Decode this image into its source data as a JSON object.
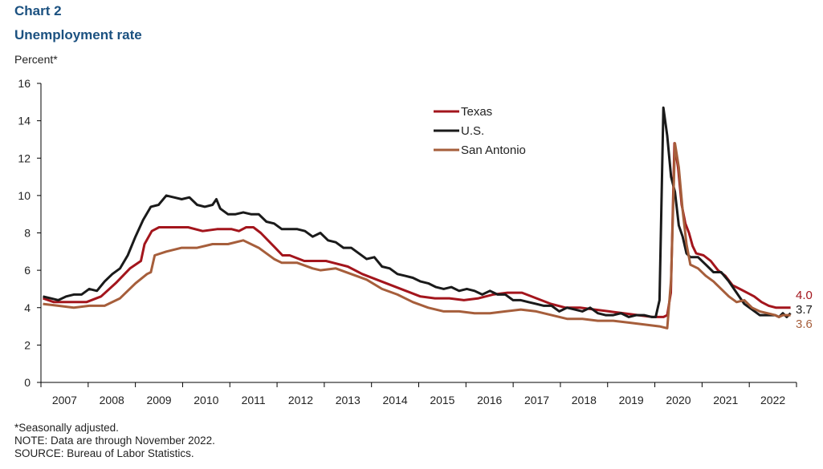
{
  "header": {
    "chart_number": "Chart 2",
    "title": "Unemployment  rate",
    "unit_label": "Percent*"
  },
  "footnotes": [
    "*Seasonally adjusted.",
    "NOTE: Data are through  November 2022.",
    "SOURCE: Bureau of Labor Statistics."
  ],
  "chart_data": {
    "type": "line",
    "title": "Unemployment  rate",
    "ylabel": "Percent*",
    "xlabel": "",
    "ylim": [
      0,
      16
    ],
    "yticks": [
      0,
      2,
      4,
      6,
      8,
      10,
      12,
      14,
      16
    ],
    "xtick_labels": [
      "2007",
      "2008",
      "2009",
      "2010",
      "2011",
      "2012",
      "2013",
      "2014",
      "2015",
      "2016",
      "2017",
      "2018",
      "2019",
      "2020",
      "2021",
      "2022"
    ],
    "x_start": "2007-01",
    "x_end": "2022-11",
    "frequency": "monthly",
    "legend_position": "top-center",
    "grid": false,
    "series": [
      {
        "name": "Texas",
        "color": "#a3151c",
        "end_label": "4.0",
        "keypoints": [
          [
            0,
            4.5
          ],
          [
            3,
            4.3
          ],
          [
            8,
            4.3
          ],
          [
            12,
            4.3
          ],
          [
            16,
            4.6
          ],
          [
            20,
            5.3
          ],
          [
            24,
            6.1
          ],
          [
            27,
            6.5
          ],
          [
            28,
            7.4
          ],
          [
            30,
            8.1
          ],
          [
            32,
            8.3
          ],
          [
            40,
            8.3
          ],
          [
            44,
            8.1
          ],
          [
            48,
            8.2
          ],
          [
            52,
            8.2
          ],
          [
            54,
            8.1
          ],
          [
            56,
            8.3
          ],
          [
            58,
            8.3
          ],
          [
            60,
            8.0
          ],
          [
            64,
            7.2
          ],
          [
            66,
            6.8
          ],
          [
            68,
            6.8
          ],
          [
            72,
            6.5
          ],
          [
            76,
            6.5
          ],
          [
            78,
            6.5
          ],
          [
            80,
            6.4
          ],
          [
            84,
            6.2
          ],
          [
            88,
            5.8
          ],
          [
            92,
            5.5
          ],
          [
            96,
            5.2
          ],
          [
            100,
            4.9
          ],
          [
            104,
            4.6
          ],
          [
            108,
            4.5
          ],
          [
            112,
            4.5
          ],
          [
            116,
            4.4
          ],
          [
            120,
            4.5
          ],
          [
            124,
            4.7
          ],
          [
            128,
            4.8
          ],
          [
            132,
            4.8
          ],
          [
            136,
            4.5
          ],
          [
            140,
            4.2
          ],
          [
            144,
            4.0
          ],
          [
            148,
            4.0
          ],
          [
            152,
            3.9
          ],
          [
            156,
            3.8
          ],
          [
            160,
            3.7
          ],
          [
            164,
            3.6
          ],
          [
            168,
            3.5
          ],
          [
            171,
            3.5
          ],
          [
            172,
            3.6
          ],
          [
            173,
            4.8
          ],
          [
            174,
            12.8
          ],
          [
            175,
            11.5
          ],
          [
            176,
            9.5
          ],
          [
            177,
            8.5
          ],
          [
            178,
            8.0
          ],
          [
            179,
            7.3
          ],
          [
            180,
            6.9
          ],
          [
            182,
            6.8
          ],
          [
            184,
            6.5
          ],
          [
            186,
            6.0
          ],
          [
            188,
            5.7
          ],
          [
            190,
            5.2
          ],
          [
            192,
            5.0
          ],
          [
            194,
            4.8
          ],
          [
            196,
            4.6
          ],
          [
            198,
            4.3
          ],
          [
            200,
            4.1
          ],
          [
            202,
            4.0
          ],
          [
            204,
            4.0
          ],
          [
            206,
            4.0
          ],
          [
            202,
            4.0
          ],
          [
            190,
            5.2
          ]
        ]
      },
      {
        "name": "U.S.",
        "color": "#1a1a1a",
        "end_label": "3.7",
        "keypoints": [
          [
            0,
            4.6
          ],
          [
            2,
            4.5
          ],
          [
            4,
            4.4
          ],
          [
            6,
            4.6
          ],
          [
            8,
            4.7
          ],
          [
            10,
            4.7
          ],
          [
            12,
            5.0
          ],
          [
            14,
            4.9
          ],
          [
            16,
            5.4
          ],
          [
            18,
            5.8
          ],
          [
            20,
            6.1
          ],
          [
            22,
            6.8
          ],
          [
            24,
            7.8
          ],
          [
            26,
            8.7
          ],
          [
            28,
            9.4
          ],
          [
            30,
            9.5
          ],
          [
            32,
            10.0
          ],
          [
            34,
            9.9
          ],
          [
            36,
            9.8
          ],
          [
            38,
            9.9
          ],
          [
            40,
            9.5
          ],
          [
            42,
            9.4
          ],
          [
            44,
            9.5
          ],
          [
            45,
            9.8
          ],
          [
            46,
            9.3
          ],
          [
            48,
            9.0
          ],
          [
            50,
            9.0
          ],
          [
            52,
            9.1
          ],
          [
            54,
            9.0
          ],
          [
            56,
            9.0
          ],
          [
            58,
            8.6
          ],
          [
            60,
            8.5
          ],
          [
            62,
            8.2
          ],
          [
            64,
            8.2
          ],
          [
            66,
            8.2
          ],
          [
            68,
            8.1
          ],
          [
            70,
            7.8
          ],
          [
            72,
            8.0
          ],
          [
            74,
            7.6
          ],
          [
            76,
            7.5
          ],
          [
            78,
            7.2
          ],
          [
            80,
            7.2
          ],
          [
            82,
            6.9
          ],
          [
            84,
            6.6
          ],
          [
            86,
            6.7
          ],
          [
            88,
            6.2
          ],
          [
            90,
            6.1
          ],
          [
            92,
            5.8
          ],
          [
            94,
            5.7
          ],
          [
            96,
            5.6
          ],
          [
            98,
            5.4
          ],
          [
            100,
            5.3
          ],
          [
            102,
            5.1
          ],
          [
            104,
            5.0
          ],
          [
            106,
            5.1
          ],
          [
            108,
            4.9
          ],
          [
            110,
            5.0
          ],
          [
            112,
            4.9
          ],
          [
            114,
            4.7
          ],
          [
            116,
            4.9
          ],
          [
            118,
            4.7
          ],
          [
            120,
            4.7
          ],
          [
            122,
            4.4
          ],
          [
            124,
            4.4
          ],
          [
            126,
            4.3
          ],
          [
            128,
            4.2
          ],
          [
            130,
            4.1
          ],
          [
            132,
            4.1
          ],
          [
            134,
            3.8
          ],
          [
            136,
            4.0
          ],
          [
            138,
            3.9
          ],
          [
            140,
            3.8
          ],
          [
            142,
            4.0
          ],
          [
            144,
            3.7
          ],
          [
            146,
            3.6
          ],
          [
            148,
            3.6
          ],
          [
            150,
            3.7
          ],
          [
            152,
            3.5
          ],
          [
            154,
            3.6
          ],
          [
            156,
            3.6
          ],
          [
            158,
            3.5
          ],
          [
            159,
            3.5
          ],
          [
            160,
            4.4
          ],
          [
            161,
            14.7
          ],
          [
            162,
            13.2
          ],
          [
            163,
            11.0
          ],
          [
            164,
            10.2
          ],
          [
            165,
            8.4
          ],
          [
            166,
            7.8
          ],
          [
            167,
            6.9
          ],
          [
            168,
            6.7
          ],
          [
            170,
            6.7
          ],
          [
            172,
            6.3
          ],
          [
            174,
            5.9
          ],
          [
            176,
            5.9
          ],
          [
            178,
            5.4
          ],
          [
            180,
            4.8
          ],
          [
            182,
            4.2
          ],
          [
            184,
            3.9
          ],
          [
            186,
            3.6
          ],
          [
            188,
            3.6
          ],
          [
            190,
            3.6
          ],
          [
            191,
            3.5
          ],
          [
            192,
            3.7
          ],
          [
            193,
            3.5
          ],
          [
            194,
            3.7
          ],
          [
            190,
            3.6
          ]
        ]
      },
      {
        "name": "San Antonio",
        "color": "#a65e3b",
        "end_label": "3.6",
        "keypoints": [
          [
            0,
            4.2
          ],
          [
            4,
            4.1
          ],
          [
            8,
            4.0
          ],
          [
            12,
            4.1
          ],
          [
            16,
            4.1
          ],
          [
            20,
            4.5
          ],
          [
            24,
            5.3
          ],
          [
            27,
            5.8
          ],
          [
            28,
            5.9
          ],
          [
            29,
            6.8
          ],
          [
            32,
            7.0
          ],
          [
            36,
            7.2
          ],
          [
            40,
            7.2
          ],
          [
            44,
            7.4
          ],
          [
            48,
            7.4
          ],
          [
            52,
            7.6
          ],
          [
            56,
            7.2
          ],
          [
            60,
            6.6
          ],
          [
            62,
            6.4
          ],
          [
            66,
            6.4
          ],
          [
            70,
            6.1
          ],
          [
            72,
            6.0
          ],
          [
            76,
            6.1
          ],
          [
            80,
            5.8
          ],
          [
            84,
            5.5
          ],
          [
            88,
            5.0
          ],
          [
            92,
            4.7
          ],
          [
            96,
            4.3
          ],
          [
            100,
            4.0
          ],
          [
            104,
            3.8
          ],
          [
            108,
            3.8
          ],
          [
            112,
            3.7
          ],
          [
            116,
            3.7
          ],
          [
            120,
            3.8
          ],
          [
            124,
            3.9
          ],
          [
            128,
            3.8
          ],
          [
            132,
            3.6
          ],
          [
            136,
            3.4
          ],
          [
            140,
            3.4
          ],
          [
            144,
            3.3
          ],
          [
            148,
            3.3
          ],
          [
            152,
            3.2
          ],
          [
            156,
            3.1
          ],
          [
            160,
            3.0
          ],
          [
            162,
            2.9
          ],
          [
            163,
            5.5
          ],
          [
            164,
            12.8
          ],
          [
            165,
            11.5
          ],
          [
            166,
            9.2
          ],
          [
            167,
            7.4
          ],
          [
            168,
            6.3
          ],
          [
            170,
            6.1
          ],
          [
            172,
            5.7
          ],
          [
            174,
            5.4
          ],
          [
            176,
            5.0
          ],
          [
            178,
            4.6
          ],
          [
            180,
            4.3
          ],
          [
            182,
            4.4
          ],
          [
            184,
            4.0
          ],
          [
            186,
            3.8
          ],
          [
            188,
            3.7
          ],
          [
            190,
            3.6
          ],
          [
            191,
            3.5
          ],
          [
            192,
            3.6
          ],
          [
            194,
            3.6
          ]
        ]
      }
    ]
  }
}
